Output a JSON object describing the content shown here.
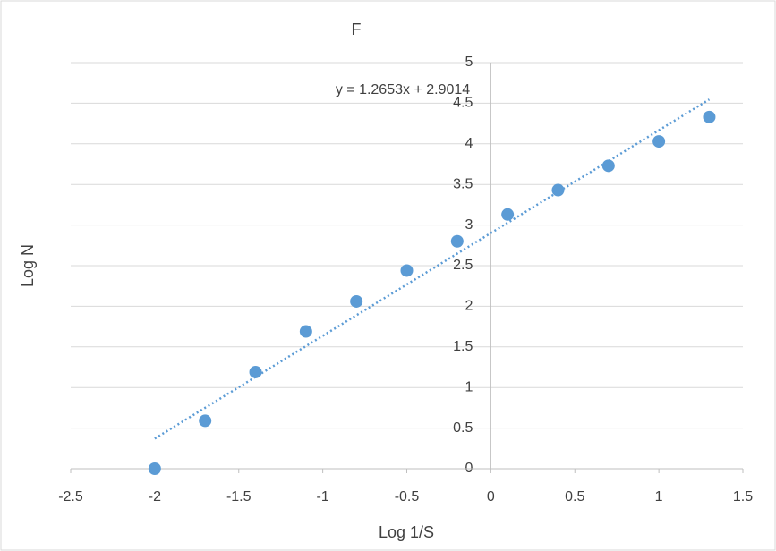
{
  "chart_data": {
    "type": "scatter",
    "title": "F",
    "x_label": "Log 1/S",
    "y_label": "Log N",
    "color": "#5b9bd5",
    "grid": true,
    "x": [
      -2,
      -1.7,
      -1.4,
      -1.1,
      -0.8,
      -0.5,
      -0.2,
      0.1,
      0.4,
      0.7,
      1.0,
      1.3
    ],
    "y": [
      0,
      0.59,
      1.19,
      1.69,
      2.06,
      2.44,
      2.8,
      3.13,
      3.43,
      3.73,
      4.03,
      4.33
    ],
    "xlim": [
      -2.5,
      1.5
    ],
    "xticks": [
      -2.5,
      -2,
      -1.5,
      -1,
      -0.5,
      0,
      0.5,
      1,
      1.5
    ],
    "ylim": [
      0,
      5
    ],
    "yticks": [
      0,
      0.5,
      1,
      1.5,
      2,
      2.5,
      3,
      3.5,
      4,
      4.5,
      5
    ],
    "trendline": {
      "label": "y = 1.2653x + 2.9014",
      "slope": 1.2653,
      "intercept": 2.9014
    }
  }
}
